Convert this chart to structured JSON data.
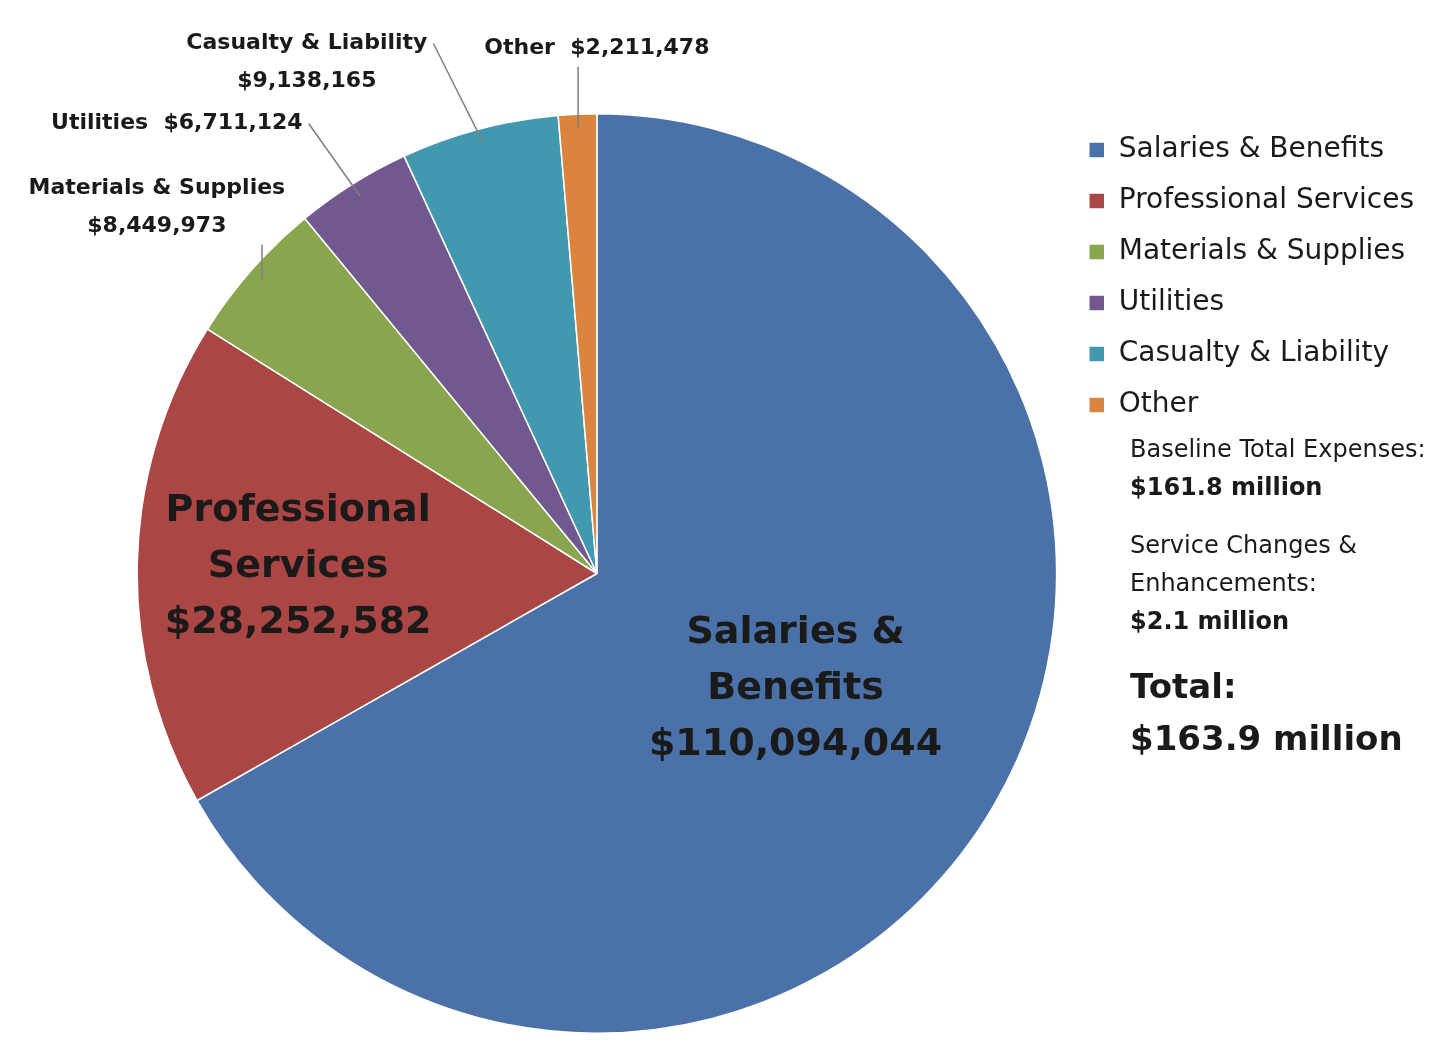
{
  "chart_data": {
    "type": "pie",
    "categories": [
      "Salaries & Benefits",
      "Professional Services",
      "Materials & Supplies",
      "Utilities",
      "Casualty & Liability",
      "Other"
    ],
    "values": [
      110094044,
      28252582,
      8449973,
      6711124,
      9138165,
      2211478
    ],
    "value_labels": [
      "$110,094,044",
      "$28,252,582",
      "$8,449,973",
      "$6,711,124",
      "$9,138,165",
      "$2,211,478"
    ],
    "colors": [
      "#4a72a9",
      "#aa4643",
      "#89a54e",
      "#71588f",
      "#4198af",
      "#db843d"
    ],
    "legend": "top right",
    "annotations": [
      "Baseline Total Expenses:",
      "$161.8 million",
      "Service Changes & Enhancements:",
      "$2.1 million",
      "Total:",
      "$163.9 million"
    ]
  }
}
